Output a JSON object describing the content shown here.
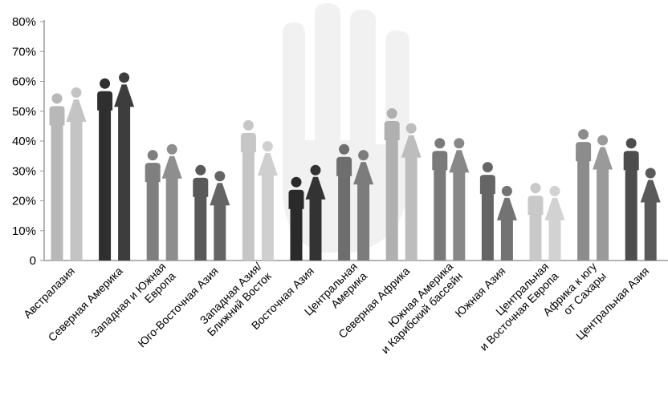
{
  "chart_data": {
    "type": "bar",
    "title": "",
    "xlabel": "",
    "ylabel": "",
    "ylim": [
      0,
      80
    ],
    "y_ticks": [
      "0",
      "10%",
      "20%",
      "30%",
      "40%",
      "50%",
      "60%",
      "70%",
      "80%"
    ],
    "grid": false,
    "categories": [
      [
        "Австралазия"
      ],
      [
        "Северная Америка"
      ],
      [
        "Западная и Южная",
        "Европа"
      ],
      [
        "Юго-Восточная Азия"
      ],
      [
        "Западная Азия/",
        "Ближний Восток"
      ],
      [
        "Восточная Азия"
      ],
      [
        "Центральная",
        "Америка"
      ],
      [
        "Северная Африка"
      ],
      [
        "Южная Америка",
        "и Карибский бассейн"
      ],
      [
        "Южная Азия"
      ],
      [
        "Центральная",
        "и Восточная Европа"
      ],
      [
        "Африка к югу",
        "от Сахары"
      ],
      [
        "Центральная Азия"
      ]
    ],
    "series": [
      {
        "values": [
          56,
          61,
          37,
          32,
          47,
          28,
          39,
          51,
          41,
          33,
          26,
          44,
          41
        ]
      },
      {
        "values": [
          58,
          63,
          39,
          30,
          40,
          32,
          37,
          46,
          41,
          25,
          25,
          42,
          31
        ]
      }
    ],
    "colors": [
      "#c4c4c4",
      "#3d3d3d",
      "#8e8e8e",
      "#656565",
      "#cfcfcf",
      "#333333",
      "#7c7c7c",
      "#bdbdbd",
      "#888888",
      "#737373",
      "#d2d2d2",
      "#9a9a9a",
      "#5a5a5a"
    ],
    "figure_colors": [
      "#b8b8b8",
      "#2f2f2f",
      "#7f7f7f",
      "#595959",
      "#c6c6c6",
      "#2a2a2a",
      "#6e6e6e",
      "#b0b0b0",
      "#7a7a7a",
      "#656565",
      "#c9c9c9",
      "#8c8c8c",
      "#4d4d4d"
    ],
    "watermark": "hand-icon"
  }
}
